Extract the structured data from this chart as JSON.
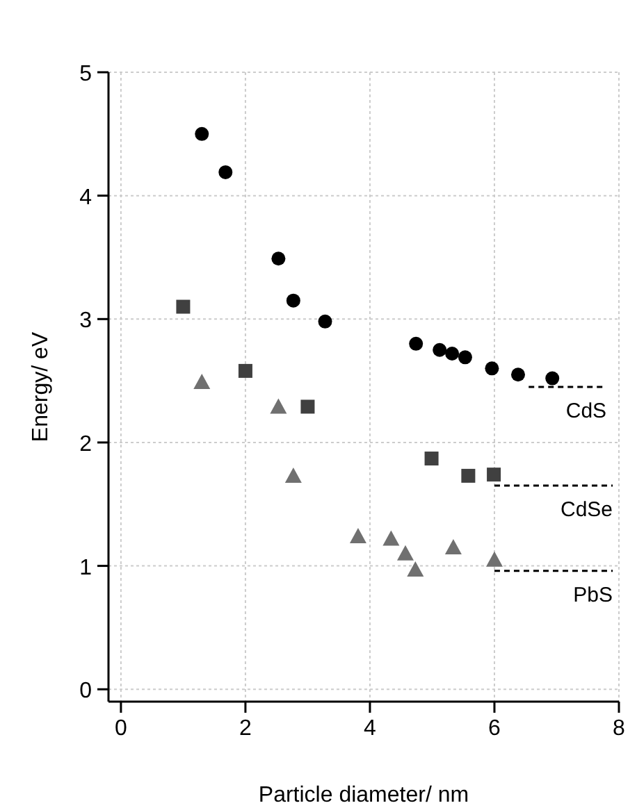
{
  "chart_data": {
    "type": "scatter",
    "xlabel": "Particle diameter/ nm",
    "ylabel": "Energy/ eV",
    "xlim": [
      -0.2,
      8
    ],
    "ylim": [
      -0.1,
      5
    ],
    "xticks": [
      0,
      2,
      4,
      6,
      8
    ],
    "yticks": [
      0,
      1,
      2,
      3,
      4,
      5
    ],
    "grid": true,
    "series": [
      {
        "color": "#000000",
        "marker": "circle",
        "x": [
          1.3,
          1.68,
          2.53,
          2.77,
          3.28,
          4.74,
          5.12,
          5.32,
          5.53,
          5.96,
          6.38,
          6.93
        ],
        "values": [
          4.5,
          4.19,
          3.49,
          3.15,
          2.98,
          2.8,
          2.75,
          2.72,
          2.69,
          2.6,
          2.55,
          2.52
        ]
      },
      {
        "color": "#404040",
        "marker": "square",
        "x": [
          1.0,
          2.0,
          3.0,
          4.99,
          5.58,
          5.99
        ],
        "values": [
          3.1,
          2.58,
          2.29,
          1.87,
          1.73,
          1.74
        ]
      },
      {
        "color": "#707070",
        "marker": "triangle",
        "x": [
          1.3,
          2.53,
          2.77,
          3.81,
          4.34,
          4.57,
          4.73,
          5.34,
          6.0
        ],
        "values": [
          2.49,
          2.29,
          1.73,
          1.24,
          1.22,
          1.1,
          0.97,
          1.15,
          1.05
        ]
      },
      {
        "type": "line",
        "name": "CdS",
        "color": "#000000",
        "line_style": "dashed",
        "x": [
          6.55,
          7.8
        ],
        "values": [
          2.45,
          2.45
        ]
      },
      {
        "type": "line",
        "name": "CdSe",
        "color": "#000000",
        "line_style": "dashed",
        "x": [
          6.0,
          7.9
        ],
        "values": [
          1.65,
          1.65
        ]
      },
      {
        "type": "line",
        "name": "PbS",
        "color": "#000000",
        "line_style": "dashed",
        "x": [
          6.0,
          7.9
        ],
        "values": [
          0.96,
          0.96
        ]
      }
    ]
  }
}
